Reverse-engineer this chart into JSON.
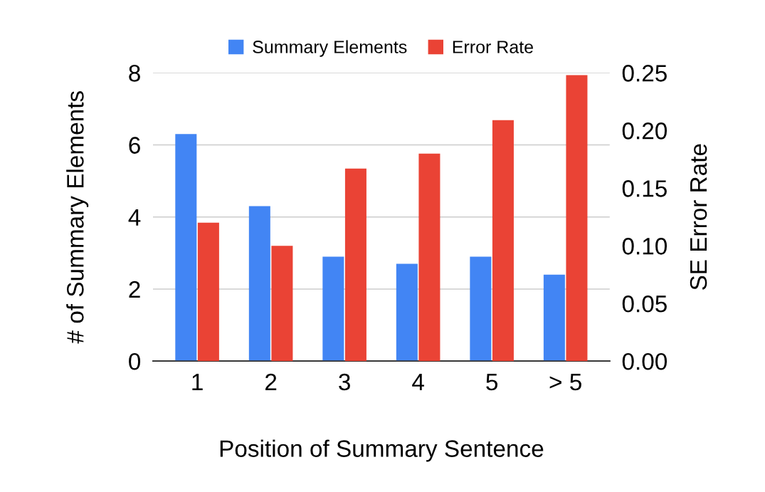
{
  "chart_data": {
    "type": "bar",
    "xlabel": "Position of Summary Sentence",
    "ylabel": "# of Summary Elements",
    "y2label": "SE Error Rate",
    "categories": [
      "1",
      "2",
      "3",
      "4",
      "5",
      "> 5"
    ],
    "series": [
      {
        "name": "Summary Elements",
        "color": "#4285f4",
        "values": [
          6.3,
          4.3,
          2.9,
          2.7,
          2.9,
          2.4
        ]
      },
      {
        "name": "Error Rate",
        "color": "#ea4335",
        "axis": "y2",
        "values": [
          0.12,
          0.1,
          0.167,
          0.18,
          0.209,
          0.248
        ]
      }
    ],
    "ylim": [
      0,
      8
    ],
    "yticks": [
      0,
      2,
      4,
      6,
      8
    ],
    "y2lim": [
      0,
      0.25
    ],
    "y2ticks": [
      {
        "value": 0,
        "label": "0.00"
      },
      {
        "value": 0.05,
        "label": "0.05"
      },
      {
        "value": 0.1,
        "label": "0.10"
      },
      {
        "value": 0.15,
        "label": "0.15"
      },
      {
        "value": 0.2,
        "label": "0.20"
      },
      {
        "value": 0.25,
        "label": "0.25"
      }
    ],
    "grid": "y",
    "legend": "top"
  }
}
